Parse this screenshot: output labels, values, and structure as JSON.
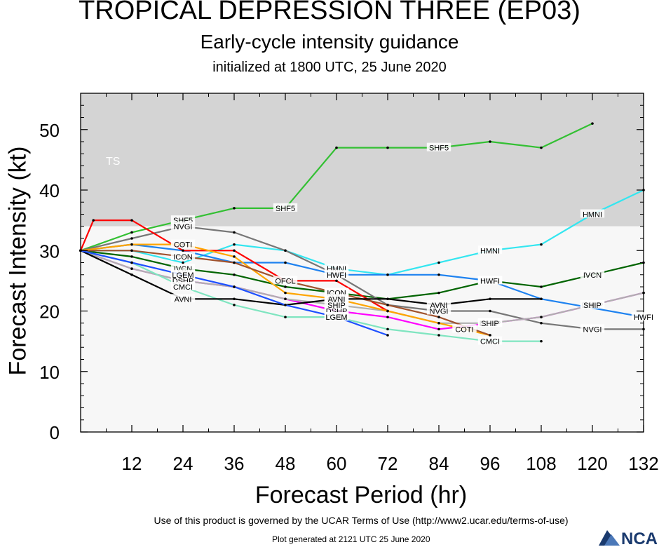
{
  "header": {
    "title": "TROPICAL DEPRESSION THREE (EP03)",
    "subtitle": "Early-cycle intensity guidance",
    "init_text": "initialized at 1800 UTC, 25 June 2020"
  },
  "footer": {
    "terms": "Use of this product is governed by the UCAR Terms of Use (http://www2.ucar.edu/terms-of-use)",
    "generated": "Plot generated at 2121 UTC   25 June 2020",
    "logo_text": "NCAR"
  },
  "chart_data": {
    "type": "line",
    "title": "TROPICAL DEPRESSION THREE (EP03)",
    "xlabel": "Forecast Period (hr)",
    "ylabel": "Forecast Intensity (kt)",
    "xlim": [
      0,
      132
    ],
    "ylim": [
      0,
      56
    ],
    "xticks": [
      12,
      24,
      36,
      48,
      60,
      72,
      84,
      96,
      108,
      120,
      132
    ],
    "yticks": [
      0,
      10,
      20,
      30,
      40,
      50
    ],
    "grid": false,
    "bands": [
      {
        "label": "TS",
        "from": 34,
        "to": 56,
        "color": "#d4d4d4"
      },
      {
        "label": "",
        "from": 0,
        "to": 34,
        "color": "#f7f7f7"
      }
    ],
    "series": [
      {
        "name": "SHF5",
        "color": "#33c033",
        "label_at": [
          24,
          48,
          84
        ],
        "x": [
          0,
          12,
          24,
          36,
          48,
          60,
          72,
          84,
          96,
          108,
          120
        ],
        "y": [
          30,
          33,
          35,
          37,
          37,
          47,
          47,
          47,
          48,
          47,
          51
        ]
      },
      {
        "name": "HMNI",
        "color": "#33e6f0",
        "label_at": [
          60,
          96,
          120
        ],
        "x": [
          0,
          12,
          24,
          36,
          48,
          60,
          72,
          84,
          96,
          108,
          120,
          132
        ],
        "y": [
          30,
          30,
          28,
          31,
          30,
          27,
          26,
          28,
          30,
          31,
          36,
          40
        ]
      },
      {
        "name": "IVCN",
        "color": "#006400",
        "label_at": [
          24,
          60,
          96,
          120
        ],
        "x": [
          0,
          12,
          24,
          36,
          48,
          60,
          72,
          84,
          96,
          108,
          120,
          132
        ],
        "y": [
          30,
          29,
          27,
          26,
          24,
          23,
          22,
          23,
          25,
          24,
          26,
          28
        ]
      },
      {
        "name": "HWFI",
        "color": "#1e82f0",
        "label_at": [
          60,
          96,
          132
        ],
        "x": [
          0,
          12,
          24,
          36,
          48,
          60,
          72,
          84,
          96,
          108,
          132
        ],
        "y": [
          30,
          31,
          30,
          28,
          28,
          26,
          26,
          26,
          25,
          22,
          19
        ]
      },
      {
        "name": "NVGI",
        "color": "#777777",
        "label_at": [
          24,
          84,
          120
        ],
        "x": [
          0,
          12,
          24,
          36,
          48,
          60,
          72,
          84,
          96,
          108,
          120,
          132
        ],
        "y": [
          30,
          32,
          34,
          33,
          30,
          26,
          21,
          20,
          20,
          18,
          17,
          17
        ]
      },
      {
        "name": "DSHP",
        "color": "#ff00ff",
        "label_at": [
          24,
          60,
          96,
          120
        ],
        "x": [
          0,
          12,
          24,
          36,
          48,
          60,
          72,
          84,
          96,
          108,
          120,
          132
        ],
        "y": [
          30,
          27,
          25,
          24,
          22,
          20,
          19,
          17,
          18,
          19,
          21,
          23
        ]
      },
      {
        "name": "SHIP",
        "color": "#b0b0b0",
        "label_at": [
          60,
          96,
          120
        ],
        "x": [
          0,
          12,
          24,
          36,
          48,
          60,
          72,
          84,
          96,
          108,
          120,
          132
        ],
        "y": [
          30,
          27,
          25,
          24,
          22,
          21,
          20,
          18,
          18,
          19,
          21,
          23
        ]
      },
      {
        "name": "OFCL",
        "color": "#ff0000",
        "label_at": [
          48
        ],
        "x": [
          0,
          3,
          12,
          24,
          36,
          48,
          60,
          72
        ],
        "y": [
          30,
          35,
          35,
          30,
          30,
          25,
          25,
          20
        ]
      },
      {
        "name": "COTI",
        "color": "#ffa500",
        "label_at": [
          24,
          60,
          90
        ],
        "x": [
          0,
          12,
          24,
          36,
          48,
          60,
          72,
          84,
          96
        ],
        "y": [
          30,
          31,
          31,
          29,
          23,
          22,
          20,
          18,
          16
        ]
      },
      {
        "name": "ICON",
        "color": "#a0522d",
        "label_at": [
          24,
          60
        ],
        "x": [
          0,
          12,
          24,
          36,
          48,
          60,
          72,
          84,
          96
        ],
        "y": [
          30,
          30,
          29,
          28,
          25,
          23,
          21,
          19,
          16
        ]
      },
      {
        "name": "CMCI",
        "color": "#7fe5c0",
        "label_at": [
          24,
          60,
          96
        ],
        "x": [
          0,
          12,
          24,
          36,
          48,
          60,
          72,
          84,
          96,
          108
        ],
        "y": [
          30,
          28,
          24,
          21,
          19,
          19,
          17,
          16,
          15,
          15
        ]
      },
      {
        "name": "AVNI",
        "color": "#000000",
        "label_at": [
          24,
          60,
          84
        ],
        "x": [
          0,
          12,
          24,
          36,
          48,
          60,
          72,
          84,
          96,
          108
        ],
        "y": [
          30,
          26,
          22,
          22,
          21,
          22,
          22,
          21,
          22,
          22
        ]
      },
      {
        "name": "LGEM",
        "color": "#1e50ff",
        "label_at": [
          24,
          60
        ],
        "x": [
          0,
          12,
          24,
          36,
          48,
          60,
          72
        ],
        "y": [
          30,
          28,
          26,
          24,
          21,
          19,
          16
        ]
      }
    ]
  }
}
